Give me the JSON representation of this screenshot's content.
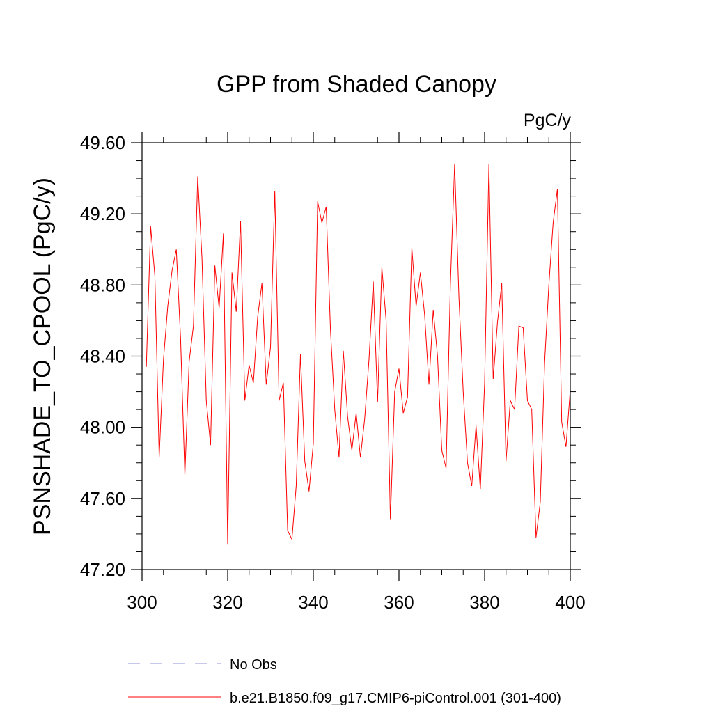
{
  "chart_data": {
    "type": "line",
    "title": "GPP from Shaded Canopy",
    "units_label": "PgC/y",
    "ylabel": "PSNSHADE_TO_CPOOL  (PgC/y)",
    "xlabel": "",
    "xlim": [
      300,
      400
    ],
    "ylim": [
      47.2,
      49.6
    ],
    "x_ticks": [
      300,
      320,
      340,
      360,
      380,
      400
    ],
    "x_tick_labels": [
      "300",
      "320",
      "340",
      "360",
      "380",
      "400"
    ],
    "y_ticks": [
      47.2,
      47.6,
      48.0,
      48.4,
      48.8,
      49.2,
      49.6
    ],
    "y_tick_labels": [
      "47.20",
      "47.60",
      "48.00",
      "48.40",
      "48.80",
      "49.20",
      "49.60"
    ],
    "x_minor_step": 5,
    "y_minor_step": 0.1,
    "grid": false,
    "legend_position": "bottom",
    "series": [
      {
        "name": "b.e21.B1850.f09_g17.CMIP6-piControl.001 (301-400)",
        "color": "#ff0000",
        "style": "solid",
        "x": [
          301,
          302,
          303,
          304,
          305,
          306,
          307,
          308,
          309,
          310,
          311,
          312,
          313,
          314,
          315,
          316,
          317,
          318,
          319,
          320,
          321,
          322,
          323,
          324,
          325,
          326,
          327,
          328,
          329,
          330,
          331,
          332,
          333,
          334,
          335,
          336,
          337,
          338,
          339,
          340,
          341,
          342,
          343,
          344,
          345,
          346,
          347,
          348,
          349,
          350,
          351,
          352,
          353,
          354,
          355,
          356,
          357,
          358,
          359,
          360,
          361,
          362,
          363,
          364,
          365,
          366,
          367,
          368,
          369,
          370,
          371,
          372,
          373,
          374,
          375,
          376,
          377,
          378,
          379,
          380,
          381,
          382,
          383,
          384,
          385,
          386,
          387,
          388,
          389,
          390,
          391,
          392,
          393,
          394,
          395,
          396,
          397,
          398,
          399,
          400
        ],
        "values": [
          48.34,
          49.13,
          48.85,
          47.83,
          48.38,
          48.68,
          48.88,
          49.0,
          48.5,
          47.73,
          48.37,
          48.57,
          49.41,
          48.95,
          48.15,
          47.9,
          48.91,
          48.67,
          49.09,
          47.34,
          48.87,
          48.65,
          49.16,
          48.15,
          48.35,
          48.25,
          48.62,
          48.81,
          48.24,
          48.45,
          49.33,
          48.15,
          48.25,
          47.42,
          47.37,
          47.67,
          48.41,
          47.81,
          47.64,
          47.91,
          49.27,
          49.15,
          49.24,
          48.55,
          48.1,
          47.83,
          48.43,
          48.06,
          47.87,
          48.08,
          47.83,
          48.05,
          48.38,
          48.82,
          48.14,
          48.9,
          48.6,
          47.48,
          48.2,
          48.33,
          48.08,
          48.17,
          49.01,
          48.68,
          48.87,
          48.63,
          48.24,
          48.66,
          48.4,
          47.87,
          47.77,
          48.8,
          49.48,
          48.73,
          48.2,
          47.8,
          47.67,
          48.01,
          47.65,
          48.25,
          49.48,
          48.27,
          48.59,
          48.81,
          47.81,
          48.15,
          48.1,
          48.57,
          48.56,
          48.15,
          48.1,
          47.38,
          47.58,
          48.36,
          48.8,
          49.15,
          49.34,
          48.03,
          47.89,
          48.21
        ]
      },
      {
        "name": "No Obs",
        "color": "#9090d8",
        "style": "dashed",
        "x": [],
        "values": []
      }
    ]
  }
}
